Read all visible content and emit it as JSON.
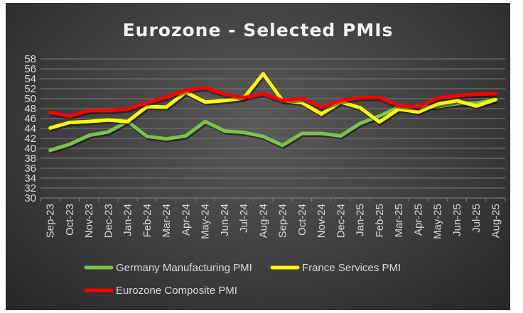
{
  "chart_data": {
    "type": "line",
    "title": "Eurozone - Selected PMIs",
    "xlabel": "",
    "ylabel": "",
    "ylim": [
      30,
      58
    ],
    "ytick_step": 2,
    "yticks": [
      "30",
      "32",
      "34",
      "36",
      "38",
      "40",
      "42",
      "44",
      "46",
      "48",
      "50",
      "52",
      "54",
      "56",
      "58"
    ],
    "grid": true,
    "legend_position": "bottom",
    "categories": [
      "Sep-23",
      "Oct-23",
      "Nov-23",
      "Dec-23",
      "Jan-24",
      "Feb-24",
      "Mar-24",
      "Apr-24",
      "May-24",
      "Jun-24",
      "Jul-24",
      "Aug-24",
      "Sep-24",
      "Oct-24",
      "Nov-24",
      "Dec-24",
      "Jan-25",
      "Feb-25",
      "Mar-25",
      "Apr-25",
      "May-25",
      "Jun-25",
      "Jul-25",
      "Aug-25"
    ],
    "series": [
      {
        "name": "Germany Manufacturing PMI",
        "color": "#7dc24b",
        "values": [
          39.6,
          40.8,
          42.6,
          43.3,
          45.4,
          42.4,
          41.9,
          42.5,
          45.4,
          43.5,
          43.2,
          42.4,
          40.6,
          43.0,
          43.0,
          42.5,
          45.0,
          46.5,
          48.3,
          48.4,
          48.4,
          49.0,
          49.1,
          49.8
        ]
      },
      {
        "name": "France Services PMI",
        "color": "#ffff00",
        "values": [
          44.1,
          45.2,
          45.4,
          45.7,
          45.4,
          48.4,
          48.3,
          51.3,
          49.3,
          49.6,
          50.1,
          55.0,
          49.6,
          49.2,
          46.9,
          49.3,
          48.2,
          45.3,
          47.9,
          47.3,
          48.9,
          49.6,
          48.5,
          49.8
        ]
      },
      {
        "name": "Eurozone Composite PMI",
        "color": "#ff0000",
        "values": [
          47.2,
          46.5,
          47.6,
          47.6,
          47.9,
          49.2,
          50.3,
          51.7,
          52.2,
          50.9,
          50.2,
          51.0,
          49.6,
          50.0,
          48.3,
          49.6,
          50.2,
          50.2,
          48.6,
          48.3,
          50.1,
          50.6,
          50.9,
          51.0
        ]
      }
    ]
  }
}
